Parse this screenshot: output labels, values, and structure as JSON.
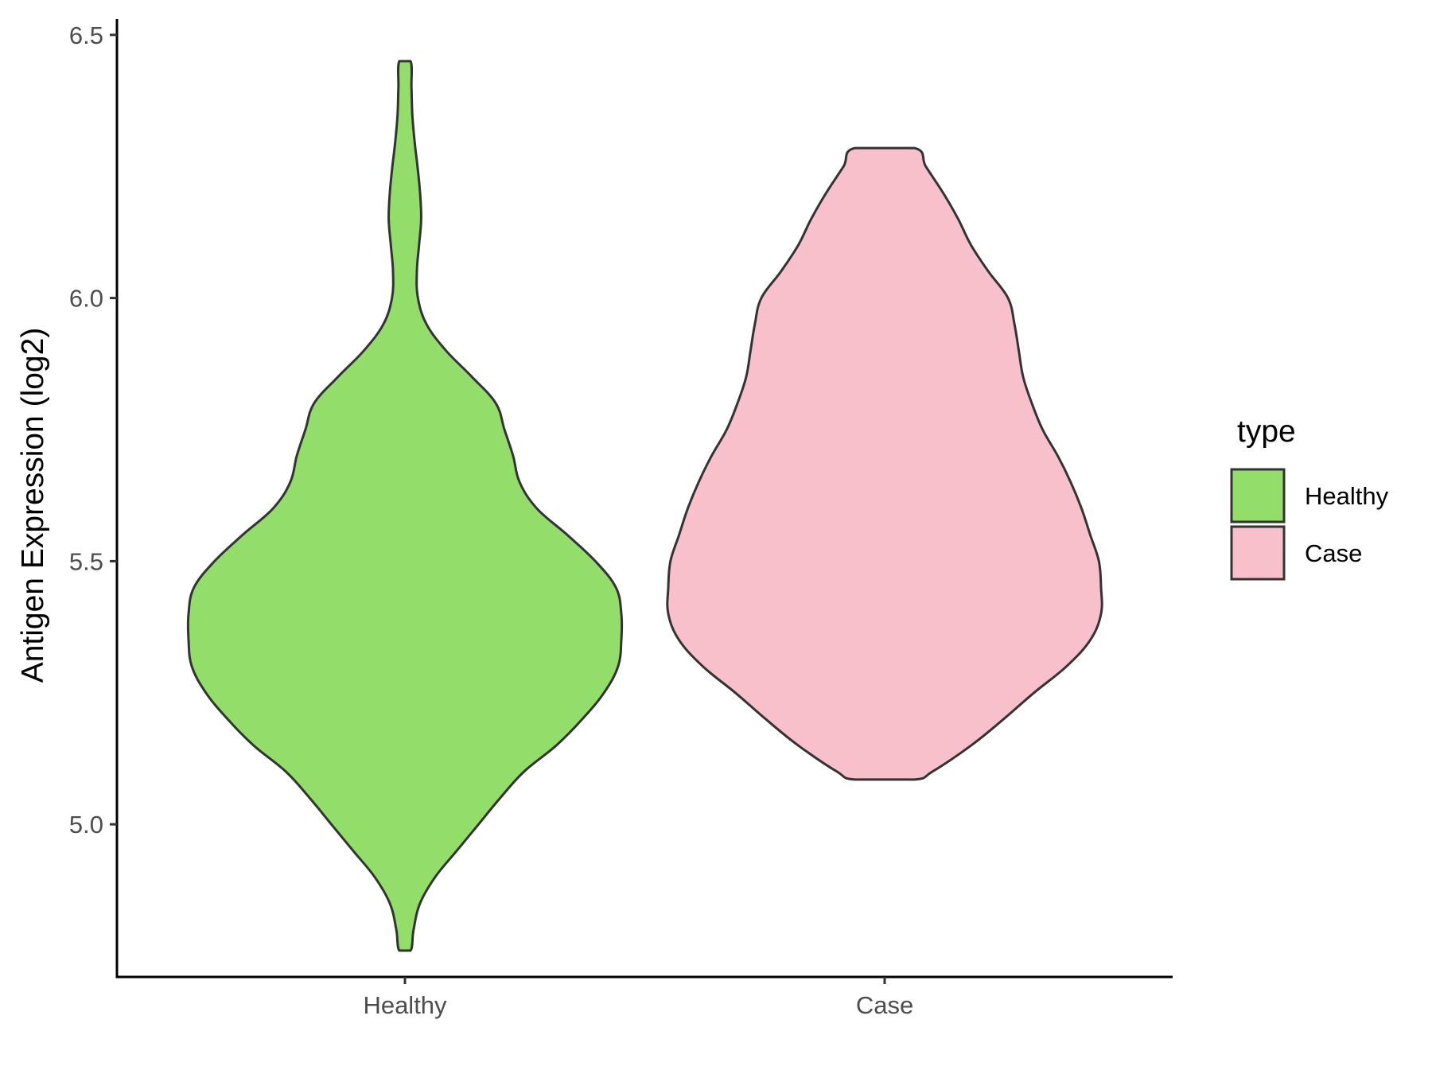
{
  "chart_data": {
    "type": "violin",
    "title": "",
    "xlabel": "",
    "ylabel": "Antigen Expression (log2)",
    "ylim": [
      4.71,
      6.53
    ],
    "yticks": [
      "5.0",
      "5.5",
      "6.0",
      "6.5"
    ],
    "ytick_values": [
      5.0,
      5.5,
      6.0,
      6.5
    ],
    "categories": [
      "Healthy",
      "Case"
    ],
    "legend": {
      "title": "type",
      "position": "right",
      "entries": [
        {
          "label": "Healthy",
          "color": "#93DD6B"
        },
        {
          "label": "Case",
          "color": "#F7C0CB"
        }
      ]
    },
    "outline_color": "#333333",
    "grid": false,
    "series": [
      {
        "category": "Healthy",
        "color": "#93DD6B",
        "min": 4.76,
        "max": 6.45,
        "profile": [
          [
            4.76,
            0.026
          ],
          [
            4.8,
            0.04
          ],
          [
            4.85,
            0.07
          ],
          [
            4.9,
            0.14
          ],
          [
            4.95,
            0.24
          ],
          [
            5.0,
            0.34
          ],
          [
            5.05,
            0.44
          ],
          [
            5.1,
            0.55
          ],
          [
            5.15,
            0.7
          ],
          [
            5.2,
            0.82
          ],
          [
            5.25,
            0.92
          ],
          [
            5.3,
            0.985
          ],
          [
            5.35,
            1.0
          ],
          [
            5.4,
            1.0
          ],
          [
            5.45,
            0.975
          ],
          [
            5.5,
            0.88
          ],
          [
            5.55,
            0.75
          ],
          [
            5.6,
            0.61
          ],
          [
            5.65,
            0.53
          ],
          [
            5.7,
            0.5
          ],
          [
            5.75,
            0.46
          ],
          [
            5.8,
            0.42
          ],
          [
            5.85,
            0.31
          ],
          [
            5.9,
            0.19
          ],
          [
            5.95,
            0.1
          ],
          [
            6.0,
            0.06
          ],
          [
            6.05,
            0.055
          ],
          [
            6.1,
            0.065
          ],
          [
            6.15,
            0.075
          ],
          [
            6.2,
            0.07
          ],
          [
            6.25,
            0.058
          ],
          [
            6.3,
            0.044
          ],
          [
            6.35,
            0.034
          ],
          [
            6.4,
            0.03
          ],
          [
            6.45,
            0.026
          ]
        ]
      },
      {
        "category": "Case",
        "color": "#F7C0CB",
        "min": 5.085,
        "max": 6.285,
        "profile": [
          [
            5.085,
            0.138
          ],
          [
            5.1,
            0.22
          ],
          [
            5.15,
            0.4
          ],
          [
            5.2,
            0.55
          ],
          [
            5.25,
            0.69
          ],
          [
            5.3,
            0.84
          ],
          [
            5.35,
            0.95
          ],
          [
            5.4,
            1.0
          ],
          [
            5.45,
            1.0
          ],
          [
            5.5,
            0.99
          ],
          [
            5.55,
            0.95
          ],
          [
            5.6,
            0.91
          ],
          [
            5.65,
            0.86
          ],
          [
            5.7,
            0.8
          ],
          [
            5.75,
            0.73
          ],
          [
            5.8,
            0.68
          ],
          [
            5.85,
            0.64
          ],
          [
            5.9,
            0.62
          ],
          [
            5.95,
            0.6
          ],
          [
            6.0,
            0.57
          ],
          [
            6.05,
            0.48
          ],
          [
            6.1,
            0.4
          ],
          [
            6.15,
            0.34
          ],
          [
            6.2,
            0.27
          ],
          [
            6.25,
            0.19
          ],
          [
            6.285,
            0.138
          ]
        ]
      }
    ]
  }
}
